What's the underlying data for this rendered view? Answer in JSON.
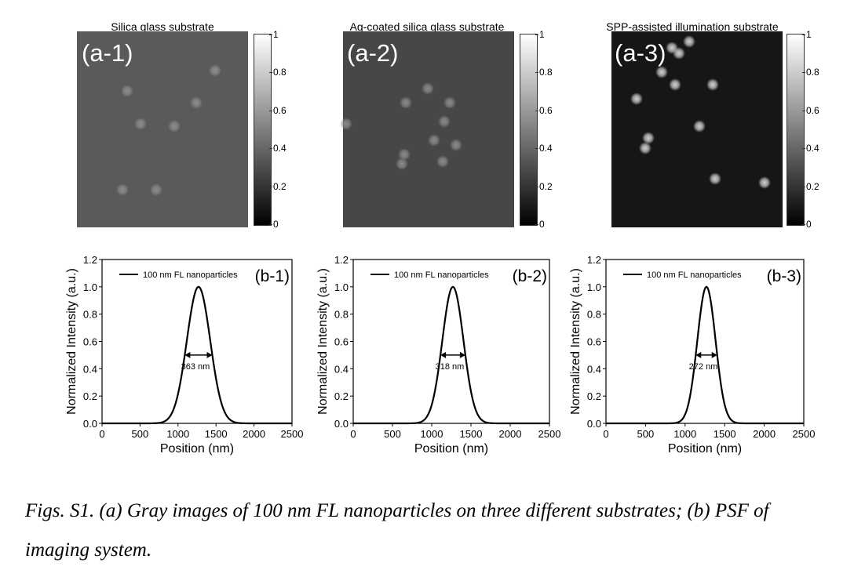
{
  "figure": {
    "caption_line1": "Figs. S1. (a) Gray images of 100 nm FL nanoparticles on three different substrates; (b) PSF of",
    "caption_line2": "imaging system."
  },
  "colorbar_ticks": [
    "1",
    "0.8",
    "0.6",
    "0.4",
    "0.2",
    "0"
  ],
  "images": [
    {
      "title": "Silica glass substrate",
      "label": "(a-1)",
      "background": "#5a5a5a",
      "spot_color": "#8c8c8c",
      "particles": [
        [
          162,
          116
        ],
        [
          250,
          131
        ],
        [
          274,
          90
        ],
        [
          179,
          158
        ],
        [
          222,
          161
        ],
        [
          156,
          242
        ],
        [
          199,
          242
        ]
      ]
    },
    {
      "title": "Ag-coated silica glass substrate",
      "label": "(a-2)",
      "background": "#474747",
      "spot_color": "#8a8a8a",
      "particles": [
        [
          545,
          113
        ],
        [
          517,
          131
        ],
        [
          573,
          131
        ],
        [
          566,
          155
        ],
        [
          441,
          158
        ],
        [
          553,
          179
        ],
        [
          581,
          185
        ],
        [
          515,
          197
        ],
        [
          512,
          209
        ],
        [
          564,
          206
        ]
      ]
    },
    {
      "title": "SPP-assisted illumination substrate",
      "label": "(a-3)",
      "background": "#161616",
      "spot_color": "#cfcfcf",
      "particles": [
        [
          878,
          53
        ],
        [
          856,
          61
        ],
        [
          865,
          68
        ],
        [
          843,
          92
        ],
        [
          860,
          108
        ],
        [
          908,
          108
        ],
        [
          811,
          126
        ],
        [
          891,
          161
        ],
        [
          826,
          176
        ],
        [
          822,
          189
        ],
        [
          911,
          228
        ],
        [
          974,
          233
        ]
      ]
    }
  ],
  "chart_data": [
    {
      "type": "line",
      "panel_label": "(b-1)",
      "xlabel": "Position (nm)",
      "ylabel": "Normalized Intensity (a.u.)",
      "xlim": [
        0,
        2500
      ],
      "ylim": [
        0,
        1.2
      ],
      "xticks": [
        0,
        500,
        1000,
        1500,
        2000,
        2500
      ],
      "yticks": [
        "0.0",
        "0.2",
        "0.4",
        "0.6",
        "0.8",
        "1.0",
        "1.2"
      ],
      "legend": "100 nm FL nanoparticles",
      "series": [
        {
          "name": "100 nm FL nanoparticles",
          "center": 1270,
          "fwhm": 363,
          "peak": 1.0
        }
      ],
      "fwhm_label": "363 nm"
    },
    {
      "type": "line",
      "panel_label": "(b-2)",
      "xlabel": "Position (nm)",
      "ylabel": "Normalized Intensity (a.u.)",
      "xlim": [
        0,
        2500
      ],
      "ylim": [
        0,
        1.2
      ],
      "xticks": [
        0,
        500,
        1000,
        1500,
        2000,
        2500
      ],
      "yticks": [
        "0.0",
        "0.2",
        "0.4",
        "0.6",
        "0.8",
        "1.0",
        "1.2"
      ],
      "legend": "100 nm FL nanoparticles",
      "series": [
        {
          "name": "100 nm FL nanoparticles",
          "center": 1270,
          "fwhm": 318,
          "peak": 1.0
        }
      ],
      "fwhm_label": "318 nm"
    },
    {
      "type": "line",
      "panel_label": "(b-3)",
      "xlabel": "Position (nm)",
      "ylabel": "Normalized Intensity (a.u.)",
      "xlim": [
        0,
        2500
      ],
      "ylim": [
        0,
        1.2
      ],
      "xticks": [
        0,
        500,
        1000,
        1500,
        2000,
        2500
      ],
      "yticks": [
        "0.0",
        "0.2",
        "0.4",
        "0.6",
        "0.8",
        "1.0",
        "1.2"
      ],
      "legend": "100 nm FL nanoparticles",
      "series": [
        {
          "name": "100 nm FL nanoparticles",
          "center": 1270,
          "fwhm": 272,
          "peak": 1.0
        }
      ],
      "fwhm_label": "272 nm"
    }
  ]
}
